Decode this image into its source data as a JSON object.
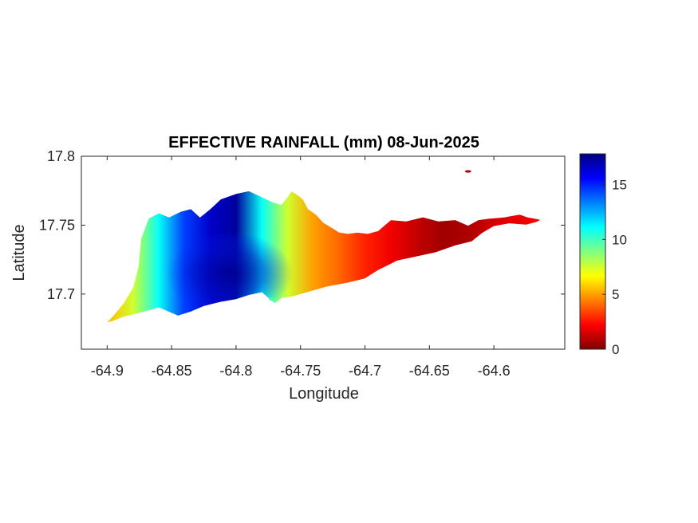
{
  "figure": {
    "title": "EFFECTIVE RAINFALL (mm) 08-Jun-2025",
    "xlabel": "Longitude",
    "ylabel": "Latitude"
  },
  "axes": {
    "xlim": [
      -64.92,
      -64.545
    ],
    "ylim": [
      17.66,
      17.8
    ],
    "xticks": [
      -64.9,
      -64.85,
      -64.8,
      -64.75,
      -64.7,
      -64.65,
      -64.6
    ],
    "xtick_labels": [
      "-64.9",
      "-64.85",
      "-64.8",
      "-64.75",
      "-64.7",
      "-64.65",
      "-64.6"
    ],
    "yticks": [
      17.7,
      17.75,
      17.8
    ],
    "ytick_labels": [
      "17.7",
      "17.75",
      "17.8"
    ]
  },
  "colorbar": {
    "range": [
      0,
      17.8
    ],
    "ticks": [
      0,
      5,
      10,
      15
    ],
    "tick_labels": [
      "0",
      "5",
      "10",
      "15"
    ],
    "colormap": "jet",
    "colors": [
      "#800000",
      "#ff0000",
      "#ff8000",
      "#ffff00",
      "#80ff80",
      "#00ffff",
      "#0080ff",
      "#0000ff",
      "#000080"
    ]
  },
  "chart_data": {
    "type": "heatmap",
    "title": "EFFECTIVE RAINFALL (mm) 08-Jun-2025",
    "xlabel": "Longitude",
    "ylabel": "Latitude",
    "xlim": [
      -64.92,
      -64.545
    ],
    "ylim": [
      17.66,
      17.8
    ],
    "grid": false,
    "value_range": [
      0,
      17.8
    ],
    "value_by_longitude": {
      "lon": [
        -64.9,
        -64.88,
        -64.86,
        -64.84,
        -64.82,
        -64.8,
        -64.78,
        -64.76,
        -64.74,
        -64.72,
        -64.7,
        -64.68,
        -64.66,
        -64.64,
        -64.62,
        -64.6,
        -64.58,
        -64.565
      ],
      "value": [
        5.5,
        7.5,
        11.0,
        14.5,
        16.5,
        17.3,
        11.0,
        7.5,
        5.0,
        4.0,
        2.8,
        2.0,
        1.2,
        0.6,
        0.8,
        1.5,
        1.9,
        2.0
      ]
    },
    "wet_core": {
      "lon": -64.805,
      "lat": 17.715,
      "peak_value": 17.5
    },
    "island_outline": {
      "lon": [
        -64.901,
        -64.895,
        -64.887,
        -64.88,
        -64.876,
        -64.874,
        -64.868,
        -64.86,
        -64.852,
        -64.843,
        -64.835,
        -64.828,
        -64.82,
        -64.812,
        -64.8,
        -64.79,
        -64.783,
        -64.772,
        -64.765,
        -64.76,
        -64.757,
        -64.752,
        -64.748,
        -64.744,
        -64.738,
        -64.732,
        -64.725,
        -64.72,
        -64.713,
        -64.706,
        -64.698,
        -64.69,
        -64.68,
        -64.668,
        -64.655,
        -64.643,
        -64.63,
        -64.62,
        -64.612,
        -64.604,
        -64.592,
        -64.58,
        -64.574,
        -64.568,
        -64.563,
        -64.567,
        -64.575,
        -64.588,
        -64.6,
        -64.609,
        -64.617,
        -64.63,
        -64.645,
        -64.66,
        -64.675,
        -64.69,
        -64.7,
        -64.713,
        -64.73,
        -64.745,
        -64.756,
        -64.764,
        -64.77,
        -64.774,
        -64.78,
        -64.79,
        -64.8,
        -64.812,
        -64.825,
        -64.835,
        -64.845,
        -64.86,
        -64.875,
        -64.888,
        -64.896,
        -64.901
      ],
      "lat": [
        17.679,
        17.685,
        17.694,
        17.705,
        17.72,
        17.74,
        17.755,
        17.759,
        17.756,
        17.76,
        17.762,
        17.756,
        17.762,
        17.769,
        17.773,
        17.775,
        17.772,
        17.767,
        17.765,
        17.771,
        17.775,
        17.772,
        17.769,
        17.762,
        17.758,
        17.752,
        17.748,
        17.745,
        17.744,
        17.745,
        17.744,
        17.746,
        17.754,
        17.753,
        17.756,
        17.753,
        17.754,
        17.75,
        17.754,
        17.755,
        17.756,
        17.758,
        17.756,
        17.755,
        17.754,
        17.752,
        17.75,
        17.751,
        17.749,
        17.744,
        17.738,
        17.735,
        17.73,
        17.727,
        17.724,
        17.717,
        17.711,
        17.708,
        17.705,
        17.701,
        17.698,
        17.697,
        17.693,
        17.696,
        17.701,
        17.699,
        17.696,
        17.694,
        17.691,
        17.687,
        17.684,
        17.69,
        17.686,
        17.683,
        17.68,
        17.679
      ]
    },
    "islets": [
      {
        "lon": -64.62,
        "lat": 17.789,
        "value": 1.0
      },
      {
        "lon": -64.772,
        "lat": 17.696,
        "value": 10.0
      }
    ]
  }
}
